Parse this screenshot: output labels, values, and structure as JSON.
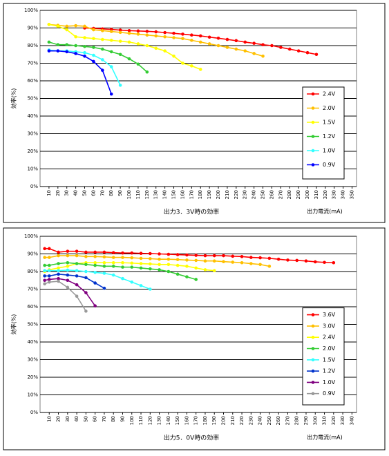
{
  "chart_data": [
    {
      "type": "line",
      "title": "出力3．3V時の効率",
      "x_label": "出力電流(mA)",
      "y_label": "効率(%)",
      "xlim": [
        0,
        355
      ],
      "xticks": [
        10,
        20,
        30,
        40,
        50,
        60,
        70,
        80,
        90,
        100,
        110,
        120,
        130,
        140,
        150,
        160,
        170,
        180,
        190,
        200,
        210,
        220,
        230,
        240,
        250,
        260,
        270,
        280,
        290,
        300,
        310,
        320,
        330,
        340,
        350
      ],
      "ylim": [
        0,
        100
      ],
      "yticks": [
        {
          "value": 0,
          "label": "0%"
        },
        {
          "value": 10,
          "label": "10%"
        },
        {
          "value": 20,
          "label": "20%"
        },
        {
          "value": 30,
          "label": "30%"
        },
        {
          "value": 40,
          "label": "40%"
        },
        {
          "value": 50,
          "label": "50%"
        },
        {
          "value": 60,
          "label": "60%"
        },
        {
          "value": 70,
          "label": "70%"
        },
        {
          "value": 80,
          "label": "80%"
        },
        {
          "value": 90,
          "label": "90%"
        },
        {
          "value": 100,
          "label": "100%"
        }
      ],
      "grid": true,
      "legend": "lower right",
      "series": [
        {
          "name": "2.4V",
          "color": "#ff0000",
          "x": [
            50,
            60,
            70,
            80,
            90,
            100,
            110,
            120,
            130,
            140,
            150,
            160,
            170,
            180,
            190,
            200,
            210,
            220,
            230,
            240,
            250,
            260,
            270,
            280,
            290,
            300,
            310
          ],
          "values": [
            90,
            89.8,
            89.5,
            89.2,
            88.8,
            88.5,
            88.3,
            88.1,
            87.8,
            87.4,
            87,
            86.5,
            86,
            85.5,
            84.8,
            84.2,
            83.5,
            82.8,
            82,
            81.3,
            80.5,
            80,
            79,
            78,
            77,
            76,
            75
          ]
        },
        {
          "name": "2.0V",
          "color": "#ffc000",
          "x": [
            10,
            20,
            30,
            40,
            50,
            60,
            70,
            80,
            90,
            100,
            110,
            120,
            130,
            140,
            150,
            160,
            170,
            180,
            190,
            200,
            210,
            220,
            230,
            240,
            250
          ],
          "values": [
            92,
            91.5,
            91,
            91.3,
            91,
            89,
            88.5,
            88,
            87.5,
            87,
            86.5,
            86,
            85.5,
            85,
            84.5,
            84,
            83,
            82,
            81,
            80,
            79,
            78,
            77,
            75.5,
            74
          ]
        },
        {
          "name": "1.5V",
          "color": "#ffff00",
          "x": [
            10,
            20,
            30,
            40,
            50,
            60,
            70,
            80,
            90,
            100,
            110,
            120,
            130,
            140,
            150,
            160,
            170,
            180
          ],
          "values": [
            92,
            91,
            89,
            85,
            84.5,
            84,
            83.5,
            83,
            82.5,
            82,
            81,
            80,
            78.5,
            77,
            74,
            70,
            68.5,
            66.5
          ]
        },
        {
          "name": "1.2V",
          "color": "#33cc33",
          "x": [
            10,
            20,
            30,
            40,
            50,
            60,
            70,
            80,
            90,
            100,
            110,
            120
          ],
          "values": [
            82,
            80.5,
            80.5,
            80,
            79.5,
            79,
            78,
            76.5,
            75,
            72.5,
            69.5,
            65
          ]
        },
        {
          "name": "1.0V",
          "color": "#33ffff",
          "x": [
            10,
            20,
            30,
            40,
            50,
            60,
            70,
            80,
            90
          ],
          "values": [
            77.5,
            77,
            77,
            76.5,
            76,
            74.5,
            72,
            68,
            57.5
          ]
        },
        {
          "name": "0.9V",
          "color": "#0000ff",
          "x": [
            10,
            20,
            30,
            40,
            50,
            60,
            70,
            80
          ],
          "values": [
            77,
            77,
            76.5,
            75.5,
            74,
            71,
            66,
            52.5
          ]
        }
      ]
    },
    {
      "type": "line",
      "title": "出力5．0V時の効率",
      "x_label": "出力電流(mA)",
      "y_label": "効率(%)",
      "xlim": [
        0,
        345
      ],
      "xticks": [
        10,
        20,
        30,
        40,
        50,
        60,
        70,
        80,
        90,
        100,
        110,
        120,
        130,
        140,
        150,
        160,
        170,
        180,
        190,
        200,
        210,
        220,
        230,
        240,
        250,
        260,
        270,
        280,
        290,
        300,
        310,
        320,
        330,
        340
      ],
      "ylim": [
        0,
        100
      ],
      "yticks": [
        {
          "value": 0,
          "label": "0%"
        },
        {
          "value": 10,
          "label": "10%"
        },
        {
          "value": 20,
          "label": "20%"
        },
        {
          "value": 30,
          "label": "30%"
        },
        {
          "value": 40,
          "label": "40%"
        },
        {
          "value": 50,
          "label": "50%"
        },
        {
          "value": 60,
          "label": "60%"
        },
        {
          "value": 70,
          "label": "70%"
        },
        {
          "value": 80,
          "label": "80%"
        },
        {
          "value": 90,
          "label": "90%"
        },
        {
          "value": 100,
          "label": "100%"
        }
      ],
      "grid": true,
      "legend": "lower right",
      "series": [
        {
          "name": "3.6V",
          "color": "#ff0000",
          "x": [
            5,
            10,
            20,
            30,
            40,
            50,
            60,
            70,
            80,
            90,
            100,
            110,
            120,
            130,
            140,
            150,
            160,
            170,
            180,
            190,
            200,
            210,
            220,
            230,
            240,
            250,
            260,
            270,
            280,
            290,
            300,
            310,
            320
          ],
          "values": [
            93,
            93,
            91,
            91.5,
            91.5,
            91,
            91,
            91,
            90.7,
            90.5,
            90.5,
            90.3,
            90.2,
            90,
            89.8,
            89.6,
            89.4,
            89.2,
            89,
            89,
            89,
            88.7,
            88.5,
            88,
            87.8,
            87.5,
            87,
            86.5,
            86.3,
            86,
            85.5,
            85.2,
            85
          ]
        },
        {
          "name": "3.0V",
          "color": "#ffc000",
          "x": [
            5,
            10,
            20,
            30,
            40,
            50,
            60,
            70,
            80,
            90,
            100,
            110,
            120,
            130,
            140,
            150,
            160,
            170,
            180,
            190,
            200,
            210,
            220,
            230,
            240,
            250
          ],
          "values": [
            88,
            88,
            89,
            89,
            89,
            88.5,
            88.5,
            88.3,
            88,
            88,
            87.8,
            87.5,
            87.3,
            87,
            87,
            86.8,
            86.5,
            86.3,
            86,
            86,
            85.6,
            85.3,
            85,
            84.5,
            84,
            83
          ]
        },
        {
          "name": "2.4V",
          "color": "#ffff00",
          "x": [
            5,
            10,
            20,
            30,
            40,
            50,
            60,
            70,
            80,
            90,
            100,
            110,
            120,
            130,
            140,
            150,
            160,
            170,
            180,
            190
          ],
          "values": [
            80,
            81,
            82,
            83,
            84.5,
            85,
            85,
            85,
            85,
            85,
            84.8,
            84.5,
            84.3,
            84,
            84,
            83.5,
            83,
            82,
            81,
            80.5
          ]
        },
        {
          "name": "2.0V",
          "color": "#33cc33",
          "x": [
            5,
            10,
            20,
            30,
            40,
            50,
            60,
            70,
            80,
            90,
            100,
            110,
            120,
            130,
            140,
            150,
            160,
            170
          ],
          "values": [
            83.5,
            83.5,
            84.5,
            85,
            84.5,
            84,
            83.5,
            83,
            83,
            82.5,
            82.5,
            82,
            81.5,
            81,
            80,
            78.5,
            77,
            75.5
          ]
        },
        {
          "name": "1.5V",
          "color": "#33ffff",
          "x": [
            5,
            10,
            20,
            30,
            40,
            50,
            60,
            70,
            80,
            90,
            100,
            110,
            120
          ],
          "values": [
            80.5,
            80.5,
            80.5,
            80.8,
            80.5,
            80,
            79.5,
            79,
            78,
            76,
            74,
            72,
            70
          ]
        },
        {
          "name": "1.2V",
          "color": "#0033cc",
          "x": [
            5,
            10,
            20,
            30,
            40,
            50,
            60,
            70
          ],
          "values": [
            77.5,
            77.5,
            78.5,
            78,
            77.5,
            76.5,
            73.5,
            70.5
          ]
        },
        {
          "name": "1.0V",
          "color": "#800080",
          "x": [
            5,
            10,
            20,
            30,
            40,
            50,
            60
          ],
          "values": [
            75,
            75.5,
            76,
            75,
            72.5,
            68,
            60.5
          ]
        },
        {
          "name": "0.9V",
          "color": "#999999",
          "x": [
            5,
            10,
            20,
            30,
            40,
            50
          ],
          "values": [
            73,
            74,
            74.5,
            71,
            66,
            57.5
          ]
        }
      ]
    }
  ]
}
